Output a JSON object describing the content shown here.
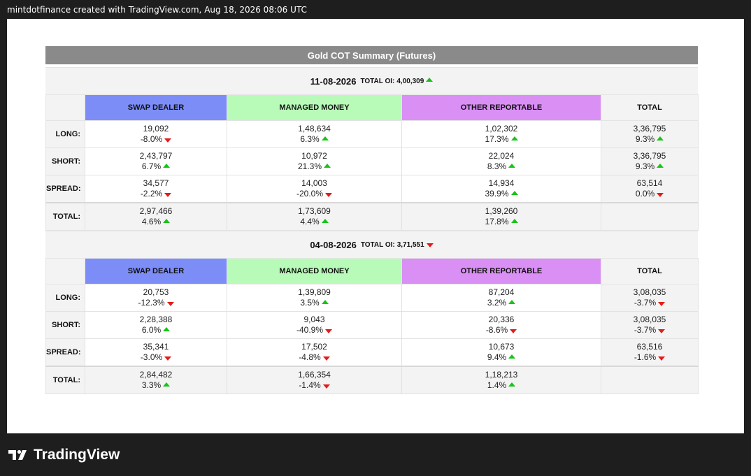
{
  "watermark": "mintdotfinance created with TradingView.com, Aug 18, 2026 08:06 UTC",
  "title": "Gold COT Summary (Futures)",
  "columns": [
    "SWAP DEALER",
    "MANAGED MONEY",
    "OTHER REPORTABLE",
    "TOTAL"
  ],
  "total_oi_label": "TOTAL OI:",
  "blocks": [
    {
      "date": "11-08-2026",
      "total_oi": "4,00,309",
      "total_oi_dir": "up",
      "rows": [
        {
          "label": "LONG:",
          "cells": [
            {
              "value": "19,092",
              "change": "-8.0%",
              "dir": "down"
            },
            {
              "value": "1,48,634",
              "change": "6.3%",
              "dir": "up"
            },
            {
              "value": "1,02,302",
              "change": "17.3%",
              "dir": "up"
            },
            {
              "value": "3,36,795",
              "change": "9.3%",
              "dir": "up"
            }
          ]
        },
        {
          "label": "SHORT:",
          "cells": [
            {
              "value": "2,43,797",
              "change": "6.7%",
              "dir": "up"
            },
            {
              "value": "10,972",
              "change": "21.3%",
              "dir": "up"
            },
            {
              "value": "22,024",
              "change": "8.3%",
              "dir": "up"
            },
            {
              "value": "3,36,795",
              "change": "9.3%",
              "dir": "up"
            }
          ]
        },
        {
          "label": "SPREAD:",
          "cells": [
            {
              "value": "34,577",
              "change": "-2.2%",
              "dir": "down"
            },
            {
              "value": "14,003",
              "change": "-20.0%",
              "dir": "down"
            },
            {
              "value": "14,934",
              "change": "39.9%",
              "dir": "up"
            },
            {
              "value": "63,514",
              "change": "0.0%",
              "dir": "down"
            }
          ]
        }
      ],
      "total": {
        "label": "TOTAL:",
        "cells": [
          {
            "value": "2,97,466",
            "change": "4.6%",
            "dir": "up"
          },
          {
            "value": "1,73,609",
            "change": "4.4%",
            "dir": "up"
          },
          {
            "value": "1,39,260",
            "change": "17.8%",
            "dir": "up"
          }
        ]
      }
    },
    {
      "date": "04-08-2026",
      "total_oi": "3,71,551",
      "total_oi_dir": "down",
      "rows": [
        {
          "label": "LONG:",
          "cells": [
            {
              "value": "20,753",
              "change": "-12.3%",
              "dir": "down"
            },
            {
              "value": "1,39,809",
              "change": "3.5%",
              "dir": "up"
            },
            {
              "value": "87,204",
              "change": "3.2%",
              "dir": "up"
            },
            {
              "value": "3,08,035",
              "change": "-3.7%",
              "dir": "down"
            }
          ]
        },
        {
          "label": "SHORT:",
          "cells": [
            {
              "value": "2,28,388",
              "change": "6.0%",
              "dir": "up"
            },
            {
              "value": "9,043",
              "change": "-40.9%",
              "dir": "down"
            },
            {
              "value": "20,336",
              "change": "-8.6%",
              "dir": "down"
            },
            {
              "value": "3,08,035",
              "change": "-3.7%",
              "dir": "down"
            }
          ]
        },
        {
          "label": "SPREAD:",
          "cells": [
            {
              "value": "35,341",
              "change": "-3.0%",
              "dir": "down"
            },
            {
              "value": "17,502",
              "change": "-4.8%",
              "dir": "down"
            },
            {
              "value": "10,673",
              "change": "9.4%",
              "dir": "up"
            },
            {
              "value": "63,516",
              "change": "-1.6%",
              "dir": "down"
            }
          ]
        }
      ],
      "total": {
        "label": "TOTAL:",
        "cells": [
          {
            "value": "2,84,482",
            "change": "3.3%",
            "dir": "up"
          },
          {
            "value": "1,66,354",
            "change": "-1.4%",
            "dir": "down"
          },
          {
            "value": "1,18,213",
            "change": "1.4%",
            "dir": "up"
          }
        ]
      }
    }
  ],
  "brand": "TradingView",
  "colors": {
    "swap": "#7c8df7",
    "managed_money": "#b8fbb8",
    "other_reportable": "#d98ff4",
    "up": "#18c418",
    "down": "#e21c1c"
  }
}
